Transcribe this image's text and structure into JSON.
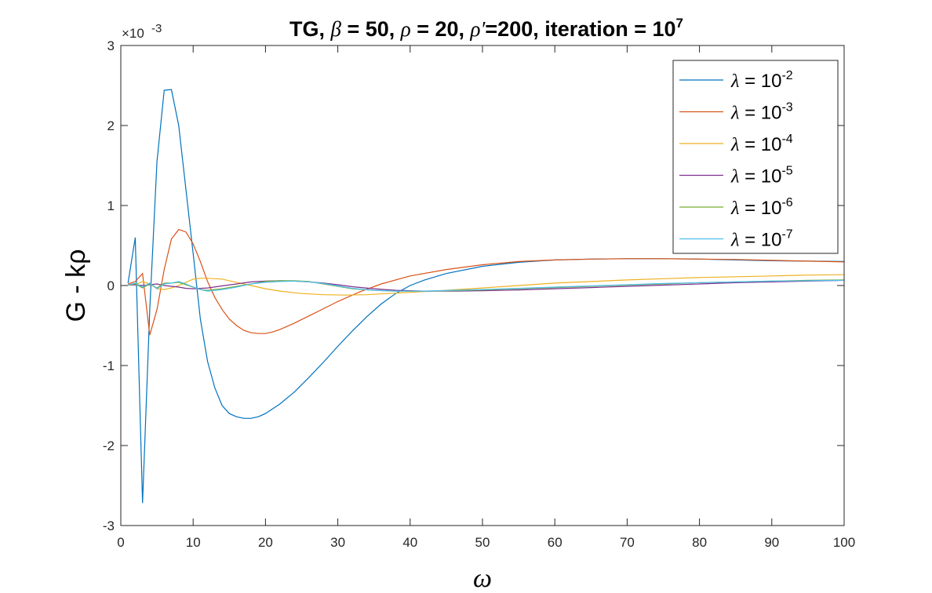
{
  "chart_data": {
    "type": "line",
    "title": {
      "prefix": "TG, ",
      "beta_sym": "β",
      "beta_eq": " = 50, ",
      "rho_sym": "ρ",
      "rho_eq": " = 20, ",
      "rhop_sym": "ρ′",
      "rhop_eq": "=200, iteration = 10",
      "iter_exp": "7"
    },
    "xlabel": "ω",
    "ylabel": "G - kρ",
    "y_multiplier": "×10",
    "y_multiplier_exp": "-3",
    "xlim": [
      0,
      100
    ],
    "ylim": [
      -3,
      3
    ],
    "x_ticks": [
      "0",
      "10",
      "20",
      "30",
      "40",
      "50",
      "60",
      "70",
      "80",
      "90",
      "100"
    ],
    "y_ticks": [
      "-3",
      "-2",
      "-1",
      "0",
      "1",
      "2",
      "3"
    ],
    "grid": false,
    "legend_position": "top-right",
    "series": [
      {
        "name": "λ = 10",
        "exponent": "-2",
        "color": "#0072BD",
        "x": [
          1,
          2,
          3,
          4,
          5,
          6,
          7,
          8,
          9,
          10,
          11,
          12,
          13,
          14,
          15,
          16,
          17,
          18,
          19,
          20,
          22,
          24,
          26,
          28,
          30,
          32,
          34,
          36,
          38,
          40,
          42,
          45,
          50,
          55,
          60,
          65,
          70,
          75,
          80,
          85,
          90,
          95,
          100
        ],
        "y": [
          0.03,
          0.6,
          -2.72,
          -0.3,
          1.55,
          2.44,
          2.45,
          2.0,
          1.2,
          0.4,
          -0.42,
          -0.95,
          -1.28,
          -1.5,
          -1.6,
          -1.64,
          -1.66,
          -1.66,
          -1.64,
          -1.6,
          -1.48,
          -1.33,
          -1.15,
          -0.96,
          -0.76,
          -0.57,
          -0.39,
          -0.23,
          -0.1,
          0.0,
          0.07,
          0.15,
          0.24,
          0.29,
          0.32,
          0.33,
          0.335,
          0.335,
          0.33,
          0.32,
          0.31,
          0.305,
          0.3
        ]
      },
      {
        "name": "λ = 10",
        "exponent": "-3",
        "color": "#D95319",
        "x": [
          1,
          2,
          3,
          4,
          5,
          6,
          7,
          8,
          9,
          10,
          11,
          12,
          13,
          14,
          15,
          16,
          17,
          18,
          19,
          20,
          21,
          22,
          24,
          26,
          28,
          30,
          33,
          36,
          40,
          45,
          50,
          55,
          60,
          65,
          70,
          75,
          80,
          85,
          90,
          95,
          100
        ],
        "y": [
          0.02,
          0.05,
          0.15,
          -0.62,
          -0.3,
          0.2,
          0.58,
          0.7,
          0.67,
          0.52,
          0.3,
          0.05,
          -0.15,
          -0.3,
          -0.42,
          -0.5,
          -0.56,
          -0.59,
          -0.6,
          -0.6,
          -0.58,
          -0.55,
          -0.47,
          -0.38,
          -0.29,
          -0.2,
          -0.08,
          0.02,
          0.12,
          0.2,
          0.26,
          0.3,
          0.32,
          0.33,
          0.335,
          0.335,
          0.33,
          0.325,
          0.315,
          0.305,
          0.295
        ]
      },
      {
        "name": "λ = 10",
        "exponent": "-4",
        "color": "#EDB120",
        "x": [
          1,
          2,
          3,
          4,
          5,
          6,
          7,
          8,
          9,
          10,
          11,
          12,
          13,
          14,
          15,
          16,
          18,
          20,
          22,
          25,
          28,
          31,
          34,
          37,
          40,
          45,
          50,
          55,
          60,
          65,
          70,
          75,
          80,
          85,
          90,
          95,
          100
        ],
        "y": [
          0.01,
          0.01,
          0.05,
          0.02,
          -0.04,
          -0.05,
          -0.03,
          0.0,
          0.04,
          0.08,
          0.09,
          0.09,
          0.085,
          0.08,
          0.06,
          0.04,
          0.0,
          -0.04,
          -0.07,
          -0.1,
          -0.115,
          -0.12,
          -0.115,
          -0.1,
          -0.085,
          -0.06,
          -0.03,
          0.0,
          0.03,
          0.05,
          0.07,
          0.085,
          0.1,
          0.11,
          0.12,
          0.13,
          0.135
        ]
      },
      {
        "name": "λ = 10",
        "exponent": "-5",
        "color": "#7E2F8E",
        "x": [
          1,
          2,
          3,
          4,
          5,
          6,
          7,
          8,
          9,
          10,
          12,
          14,
          16,
          18,
          20,
          22,
          24,
          26,
          28,
          30,
          32,
          35,
          38,
          42,
          46,
          50,
          55,
          60,
          65,
          70,
          75,
          80,
          85,
          90,
          95,
          100
        ],
        "y": [
          0.005,
          0.01,
          0.0,
          0.01,
          0.02,
          0.0,
          -0.01,
          -0.02,
          -0.035,
          -0.04,
          -0.03,
          -0.005,
          0.02,
          0.045,
          0.055,
          0.06,
          0.055,
          0.045,
          0.03,
          0.01,
          -0.015,
          -0.04,
          -0.06,
          -0.07,
          -0.07,
          -0.065,
          -0.055,
          -0.04,
          -0.025,
          -0.01,
          0.005,
          0.02,
          0.035,
          0.045,
          0.055,
          0.065
        ]
      },
      {
        "name": "λ = 10",
        "exponent": "-6",
        "color": "#77AC30",
        "x": [
          1,
          2,
          3,
          4,
          5,
          6,
          7,
          8,
          9,
          10,
          11,
          12,
          14,
          16,
          18,
          20,
          22,
          24,
          26,
          28,
          30,
          32,
          35,
          38,
          42,
          46,
          50,
          55,
          60,
          65,
          70,
          75,
          80,
          85,
          90,
          95,
          100
        ],
        "y": [
          0.005,
          0.02,
          -0.03,
          0.02,
          -0.03,
          0.03,
          0.03,
          0.04,
          0.01,
          -0.02,
          -0.05,
          -0.06,
          -0.04,
          -0.01,
          0.02,
          0.05,
          0.06,
          0.06,
          0.05,
          0.02,
          -0.01,
          -0.04,
          -0.06,
          -0.07,
          -0.07,
          -0.065,
          -0.055,
          -0.04,
          -0.025,
          -0.01,
          0.005,
          0.02,
          0.035,
          0.045,
          0.055,
          0.065,
          0.07
        ]
      },
      {
        "name": "λ = 10",
        "exponent": "-7",
        "color": "#4DBEEE",
        "x": [
          1,
          2,
          3,
          4,
          5,
          6,
          7,
          8,
          9,
          10,
          11,
          12,
          14,
          16,
          18,
          20,
          22,
          24,
          26,
          28,
          30,
          32,
          35,
          38,
          42,
          46,
          50,
          55,
          60,
          65,
          70,
          75,
          80,
          85,
          90,
          95,
          100
        ],
        "y": [
          0.005,
          0.03,
          -0.02,
          0.03,
          -0.04,
          0.02,
          0.03,
          0.05,
          0.02,
          -0.02,
          -0.05,
          -0.07,
          -0.05,
          -0.02,
          0.02,
          0.04,
          0.05,
          0.055,
          0.045,
          0.025,
          -0.005,
          -0.035,
          -0.06,
          -0.07,
          -0.07,
          -0.06,
          -0.05,
          -0.035,
          -0.02,
          -0.005,
          0.01,
          0.025,
          0.035,
          0.045,
          0.055,
          0.06,
          0.065
        ]
      }
    ]
  }
}
